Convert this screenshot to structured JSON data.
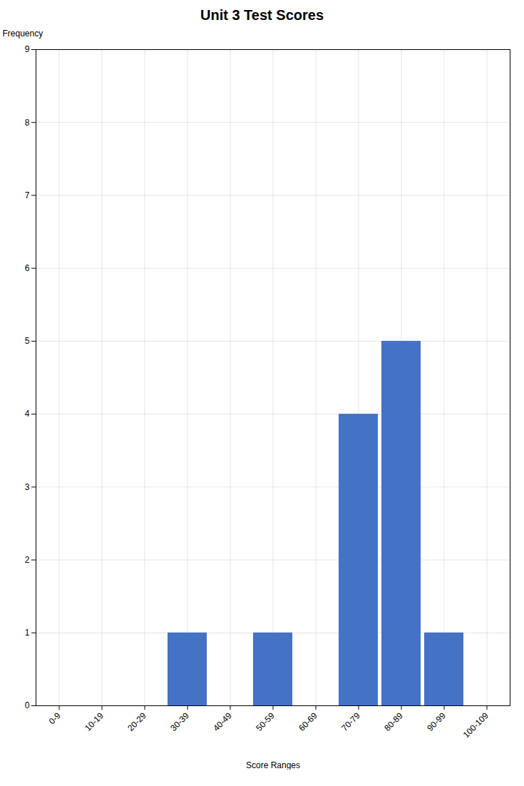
{
  "chart_data": {
    "type": "bar",
    "title": "Unit 3 Test Scores",
    "x_label": "Score Ranges",
    "y_label": "Frequency",
    "categories": [
      "0-9",
      "10-19",
      "20-29",
      "30-39",
      "40-49",
      "50-59",
      "60-69",
      "70-79",
      "80-89",
      "90-99",
      "100-109"
    ],
    "values": [
      0,
      0,
      0,
      1,
      0,
      1,
      0,
      4,
      5,
      1,
      0
    ],
    "color": "#4472c4",
    "ylim": [
      0,
      9
    ],
    "yticks": [
      0,
      1,
      2,
      3,
      4,
      5,
      6,
      7,
      8,
      9
    ],
    "grid": true
  }
}
